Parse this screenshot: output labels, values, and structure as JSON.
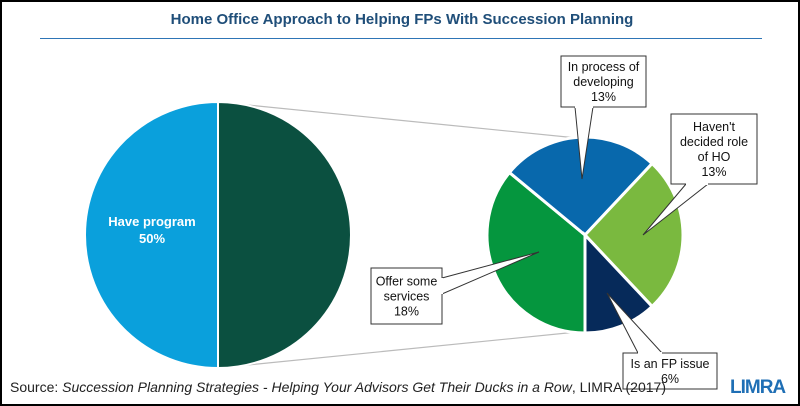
{
  "chart_data": {
    "type": "pie-of-pie",
    "title": "Home Office Approach to Helping FPs With Succession Planning",
    "main_pie": [
      {
        "label": "Have program",
        "value": 50,
        "color": "#0AA0DC"
      },
      {
        "label": "",
        "value": 50,
        "color": "#0B5040"
      }
    ],
    "sub_pie": [
      {
        "label": "Offer some services",
        "value": 18,
        "color": "#05963E"
      },
      {
        "label": "In process of developing",
        "value": 13,
        "color": "#0868AC"
      },
      {
        "label": "Haven't decided role of HO",
        "value": 13,
        "color": "#7AB93F"
      },
      {
        "label": "Is an FP issue",
        "value": 6,
        "color": "#062A5A"
      }
    ],
    "callouts": [
      {
        "lines": [
          "Offer some",
          "services",
          "18%"
        ]
      },
      {
        "lines": [
          "In process of",
          "developing",
          "13%"
        ]
      },
      {
        "lines": [
          "Haven't",
          "decided role",
          "of HO",
          "13%"
        ]
      },
      {
        "lines": [
          "Is an FP issue",
          "6%"
        ]
      }
    ],
    "main_label": {
      "lines": [
        "Have program",
        "50%"
      ]
    }
  },
  "source": {
    "prefix": "Source: ",
    "title": "Succession Planning Strategies - Helping Your Advisors Get Their Ducks in a Row",
    "suffix": ", LIMRA (2017)"
  },
  "logo": "LIMRA"
}
